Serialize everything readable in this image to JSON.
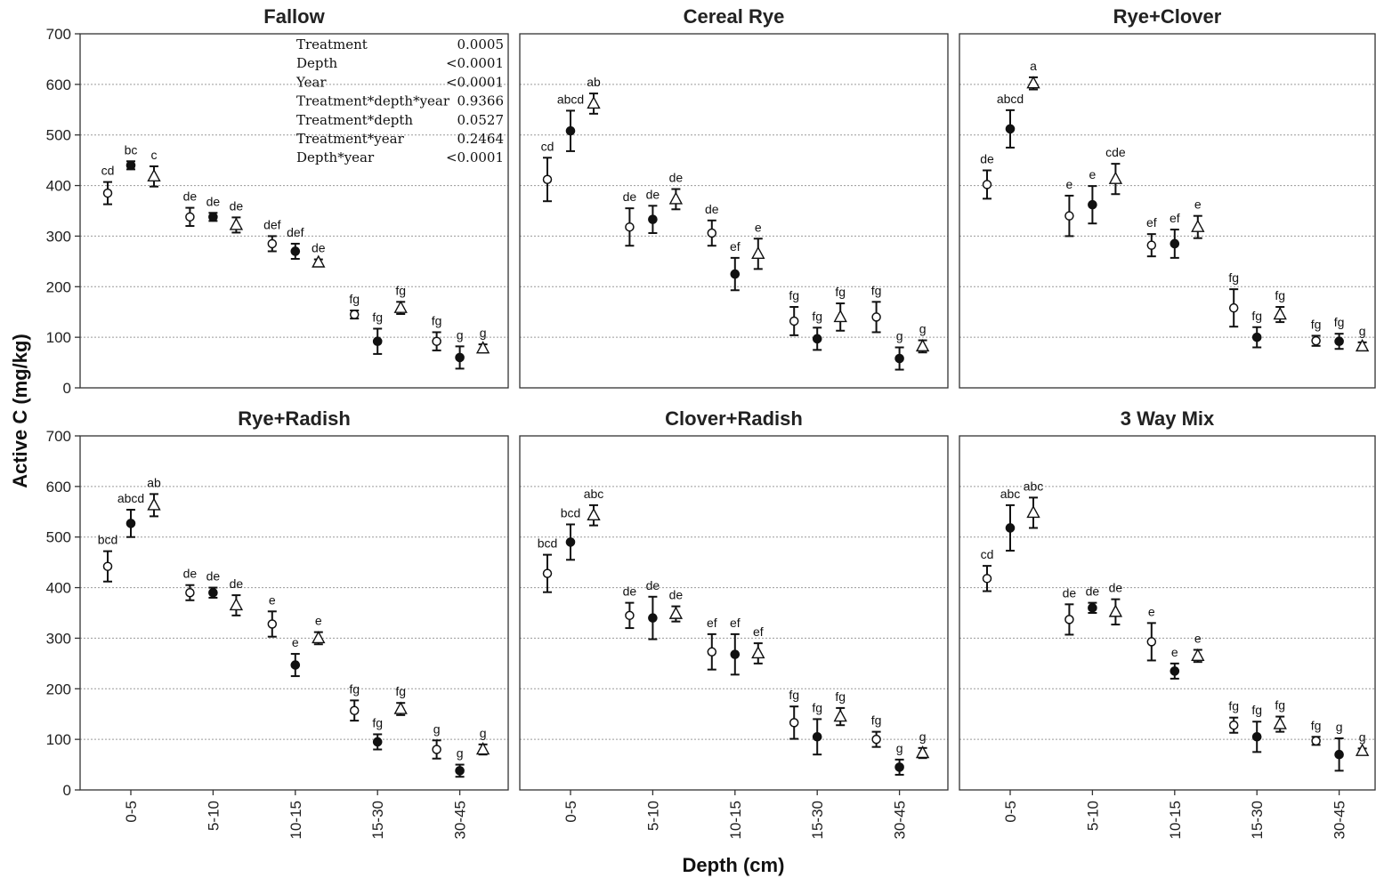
{
  "chart_data": {
    "type": "scatter",
    "ylabel": "Active C (mg/kg)",
    "xlabel": "Depth (cm)",
    "ylim": [
      0,
      700
    ],
    "yticks": [
      0,
      100,
      200,
      300,
      400,
      500,
      600,
      700
    ],
    "categories": [
      "0-5",
      "5-10",
      "10-15",
      "15-30",
      "30-45"
    ],
    "grid": "horizontal dashed",
    "marker_styles": [
      "open-circle",
      "filled-circle",
      "open-triangle"
    ],
    "stats_table": [
      {
        "term": "Treatment",
        "p": "0.0005"
      },
      {
        "term": "Depth",
        "p": "<0.0001"
      },
      {
        "term": "Year",
        "p": "<0.0001"
      },
      {
        "term": "Treatment*depth*year",
        "p": "0.9366"
      },
      {
        "term": "Treatment*depth",
        "p": "0.0527"
      },
      {
        "term": "Treatment*year",
        "p": "0.2464"
      },
      {
        "term": "Depth*year",
        "p": "<0.0001"
      }
    ],
    "panels": [
      {
        "title": "Fallow",
        "series": [
          {
            "values": [
              385,
              338,
              285,
              145,
              92
            ],
            "err": [
              22,
              18,
              15,
              8,
              18
            ],
            "letters": [
              "cd",
              "de",
              "def",
              "fg",
              "fg"
            ]
          },
          {
            "values": [
              440,
              338,
              270,
              92,
              60
            ],
            "err": [
              8,
              8,
              15,
              25,
              22
            ],
            "letters": [
              "bc",
              "de",
              "def",
              "fg",
              "g"
            ]
          },
          {
            "values": [
              418,
              322,
              248,
              158,
              78
            ],
            "err": [
              20,
              15,
              6,
              12,
              8
            ],
            "letters": [
              "c",
              "de",
              "de",
              "fg",
              "g"
            ]
          }
        ]
      },
      {
        "title": "Cereal Rye",
        "series": [
          {
            "values": [
              412,
              318,
              306,
              132,
              140
            ],
            "err": [
              43,
              37,
              25,
              28,
              30
            ],
            "letters": [
              "cd",
              "de",
              "de",
              "fg",
              "fg"
            ]
          },
          {
            "values": [
              508,
              333,
              225,
              97,
              58
            ],
            "err": [
              40,
              27,
              32,
              22,
              22
            ],
            "letters": [
              "abcd",
              "de",
              "ef",
              "fg",
              "g"
            ]
          },
          {
            "values": [
              562,
              373,
              265,
              140,
              82
            ],
            "err": [
              20,
              20,
              30,
              27,
              12
            ],
            "letters": [
              "ab",
              "de",
              "e",
              "fg",
              "g"
            ]
          }
        ]
      },
      {
        "title": "Rye+Clover",
        "series": [
          {
            "values": [
              402,
              340,
              282,
              158,
              93
            ],
            "err": [
              28,
              40,
              22,
              37,
              10
            ],
            "letters": [
              "de",
              "e",
              "ef",
              "fg",
              "fg"
            ]
          },
          {
            "values": [
              512,
              362,
              285,
              100,
              92
            ],
            "err": [
              37,
              37,
              28,
              20,
              15
            ],
            "letters": [
              "abcd",
              "e",
              "ef",
              "fg",
              "fg"
            ]
          },
          {
            "values": [
              602,
              413,
              318,
              145,
              82
            ],
            "err": [
              12,
              30,
              22,
              15,
              8
            ],
            "letters": [
              "a",
              "cde",
              "e",
              "fg",
              "g"
            ]
          }
        ]
      },
      {
        "title": "Rye+Radish",
        "series": [
          {
            "values": [
              442,
              390,
              328,
              157,
              80
            ],
            "err": [
              30,
              15,
              25,
              20,
              18
            ],
            "letters": [
              "bcd",
              "de",
              "e",
              "fg",
              "g"
            ]
          },
          {
            "values": [
              527,
              390,
              247,
              95,
              38
            ],
            "err": [
              27,
              10,
              22,
              15,
              12
            ],
            "letters": [
              "abcd",
              "de",
              "e",
              "fg",
              "g"
            ]
          },
          {
            "values": [
              563,
              365,
              300,
              160,
              80
            ],
            "err": [
              22,
              20,
              12,
              12,
              10
            ],
            "letters": [
              "ab",
              "de",
              "e",
              "fg",
              "g"
            ]
          }
        ]
      },
      {
        "title": "Clover+Radish",
        "series": [
          {
            "values": [
              428,
              345,
              273,
              133,
              100
            ],
            "err": [
              37,
              25,
              35,
              32,
              15
            ],
            "letters": [
              "bcd",
              "de",
              "ef",
              "fg",
              "fg"
            ]
          },
          {
            "values": [
              490,
              340,
              268,
              105,
              45
            ],
            "err": [
              35,
              42,
              40,
              35,
              15
            ],
            "letters": [
              "bcd",
              "de",
              "ef",
              "fg",
              "g"
            ]
          },
          {
            "values": [
              543,
              348,
              270,
              145,
              73
            ],
            "err": [
              20,
              15,
              20,
              17,
              10
            ],
            "letters": [
              "abc",
              "de",
              "ef",
              "fg",
              "g"
            ]
          }
        ]
      },
      {
        "title": "3 Way Mix",
        "series": [
          {
            "values": [
              418,
              337,
              293,
              128,
              97
            ],
            "err": [
              25,
              30,
              37,
              15,
              8
            ],
            "letters": [
              "cd",
              "de",
              "e",
              "fg",
              "fg"
            ]
          },
          {
            "values": [
              518,
              360,
              235,
              105,
              70
            ],
            "err": [
              45,
              10,
              15,
              30,
              32
            ],
            "letters": [
              "abc",
              "de",
              "e",
              "fg",
              "g"
            ]
          },
          {
            "values": [
              548,
              352,
              265,
              130,
              77
            ],
            "err": [
              30,
              25,
              12,
              15,
              5
            ],
            "letters": [
              "abc",
              "de",
              "e",
              "fg",
              "g"
            ]
          }
        ]
      }
    ]
  }
}
